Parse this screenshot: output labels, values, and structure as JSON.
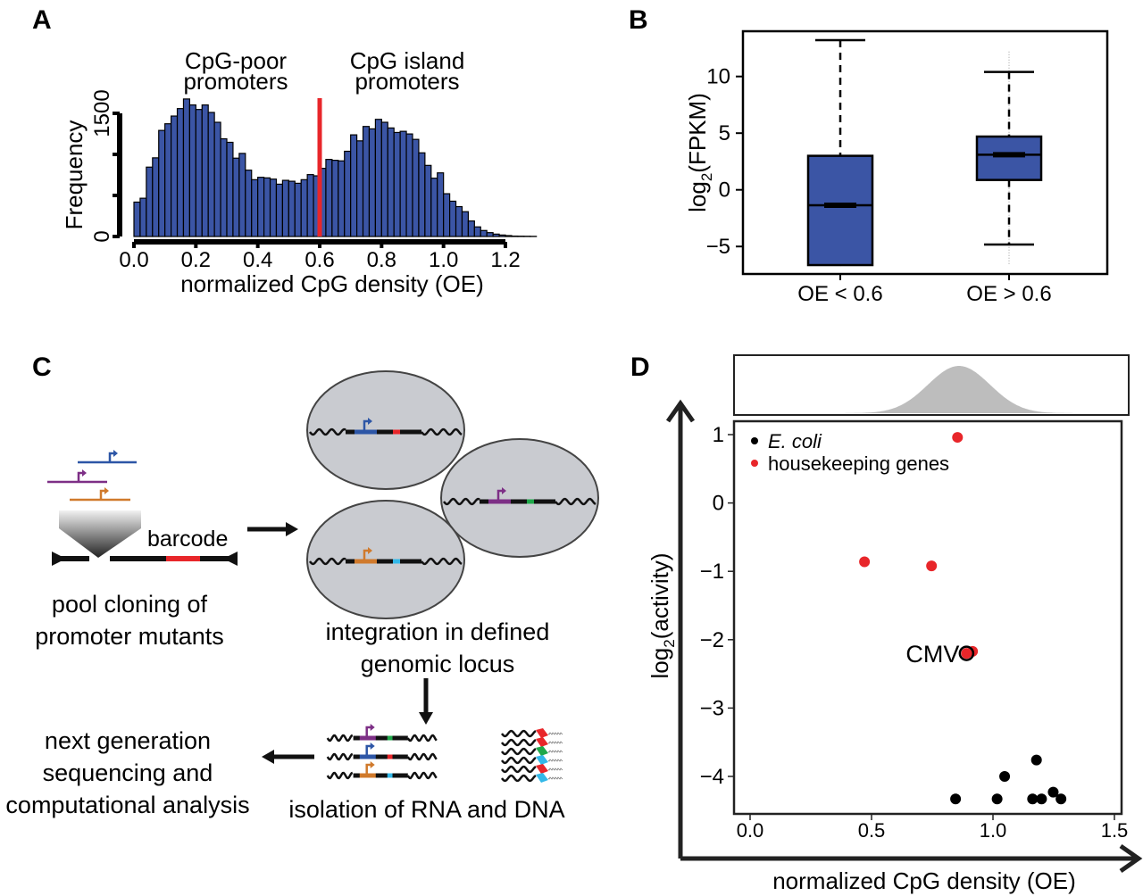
{
  "panels": {
    "a": "A",
    "b": "B",
    "c": "C",
    "d": "D"
  },
  "colors": {
    "bar": "#3b55a5",
    "red": "#e8262a",
    "box": "#3b55a5",
    "density": "#bdbdbd",
    "cell": "#c9cbd0",
    "blue": "#2d56a6",
    "purple": "#7d2f86",
    "orange": "#d07a2c",
    "green": "#1fa84a",
    "cyan": "#33b8e8"
  },
  "chart_data": [
    {
      "type": "bar",
      "panel": "A",
      "title": "",
      "annotations": [
        [
          "CpG-poor",
          "promoters"
        ],
        [
          "CpG island",
          "promoters"
        ]
      ],
      "xlabel": "normalized CpG density (OE)",
      "ylabel": "Frequency",
      "bin_start": 0.0,
      "bin_width": 0.02,
      "values": [
        419,
        466,
        845,
        958,
        1292,
        1373,
        1467,
        1558,
        1675,
        1602,
        1547,
        1602,
        1511,
        1391,
        1190,
        1147,
        954,
        1012,
        808,
        692,
        721,
        714,
        699,
        637,
        684,
        673,
        648,
        692,
        754,
        739,
        830,
        939,
        928,
        921,
        1038,
        1238,
        1165,
        1340,
        1311,
        1427,
        1391,
        1322,
        1267,
        1281,
        1249,
        1183,
        1019,
        866,
        710,
        775,
        521,
        430,
        364,
        302,
        189,
        117,
        73,
        47,
        29,
        18,
        11,
        5,
        4,
        3,
        2
      ],
      "threshold": 0.6,
      "xticks": [
        0.0,
        0.2,
        0.4,
        0.6,
        0.8,
        1.0,
        1.2
      ],
      "xtick_labels": [
        "0.0",
        "0.2",
        "0.4",
        "0.6",
        "0.8",
        "1.0",
        "1.2"
      ],
      "yticks": [
        0,
        500,
        1000,
        1500
      ],
      "ytick_labels": [
        "0",
        "1500"
      ],
      "xlim": [
        0,
        1.2
      ],
      "ylim": [
        0,
        1500
      ]
    },
    {
      "type": "box",
      "panel": "B",
      "ylabel_main": "log",
      "ylabel_sub": "2",
      "ylabel_tail": "(FPKM)",
      "categories": [
        "OE < 0.6",
        "OE > 0.6"
      ],
      "series": [
        {
          "name": "OE < 0.6",
          "whisker_low": -6.64,
          "q1": -6.64,
          "median": -1.36,
          "q3": 3.0,
          "whisker_high": 13.2,
          "outlier_range": null
        },
        {
          "name": "OE > 0.6",
          "whisker_low": -4.83,
          "q1": 0.87,
          "median": 3.1,
          "q3": 4.7,
          "whisker_high": 10.4,
          "outlier_range": [
            -6.6,
            12.2
          ]
        }
      ],
      "yticks": [
        -5,
        0,
        5,
        10
      ],
      "ytick_labels": [
        "−5",
        "0",
        "5",
        "10"
      ],
      "ylim": [
        -7.5,
        14
      ]
    },
    {
      "type": "scatter",
      "panel": "D",
      "xlabel": "normalized CpG density (OE)",
      "ylabel_main": "log",
      "ylabel_sub": "2",
      "ylabel_tail": "(activity)",
      "legend": [
        {
          "label": "E. coli",
          "color": "#000000"
        },
        {
          "label": "housekeeping genes",
          "color": "#e8262a"
        }
      ],
      "legend_position": "top-left",
      "points": [
        {
          "x": 0.854,
          "y": 0.96,
          "group": "housekeeping genes"
        },
        {
          "x": 0.471,
          "y": -0.86,
          "group": "housekeeping genes"
        },
        {
          "x": 0.747,
          "y": -0.92,
          "group": "housekeeping genes"
        },
        {
          "x": 0.916,
          "y": -2.17,
          "group": "housekeeping genes"
        },
        {
          "x": 0.891,
          "y": -2.2,
          "group": "housekeeping genes"
        },
        {
          "x": 1.179,
          "y": -3.76,
          "group": "E. coli"
        },
        {
          "x": 1.048,
          "y": -4.0,
          "group": "E. coli"
        },
        {
          "x": 0.846,
          "y": -4.33,
          "group": "E. coli"
        },
        {
          "x": 1.017,
          "y": -4.33,
          "group": "E. coli"
        },
        {
          "x": 1.163,
          "y": -4.33,
          "group": "E. coli"
        },
        {
          "x": 1.2,
          "y": -4.33,
          "group": "E. coli"
        },
        {
          "x": 1.248,
          "y": -4.23,
          "group": "E. coli"
        },
        {
          "x": 1.28,
          "y": -4.33,
          "group": "E. coli"
        }
      ],
      "highlight": {
        "label": "CMV",
        "x": 0.891,
        "y": -2.2
      },
      "density": {
        "peaks": [
          0.82,
          0.9
        ],
        "sd": 0.12,
        "range": [
          0.37,
          1.34
        ]
      },
      "xticks": [
        0.0,
        0.5,
        1.0,
        1.5
      ],
      "xtick_labels": [
        "0.0",
        "0.5",
        "1.0",
        "1.5"
      ],
      "yticks": [
        1,
        0,
        -1,
        -2,
        -3,
        -4
      ],
      "ytick_labels": [
        "1",
        "0",
        "−1",
        "−2",
        "−3",
        "−4"
      ],
      "xlim": [
        -0.065,
        1.55
      ],
      "ylim": [
        -4.55,
        1.2
      ]
    }
  ],
  "diagram": {
    "barcode": "barcode",
    "step1": [
      "pool cloning of",
      "promoter mutants"
    ],
    "step2": [
      "integration in defined",
      "genomic locus"
    ],
    "step3": "isolation of RNA and DNA",
    "step4": [
      "next generation",
      "sequencing and",
      "computational analysis"
    ]
  }
}
